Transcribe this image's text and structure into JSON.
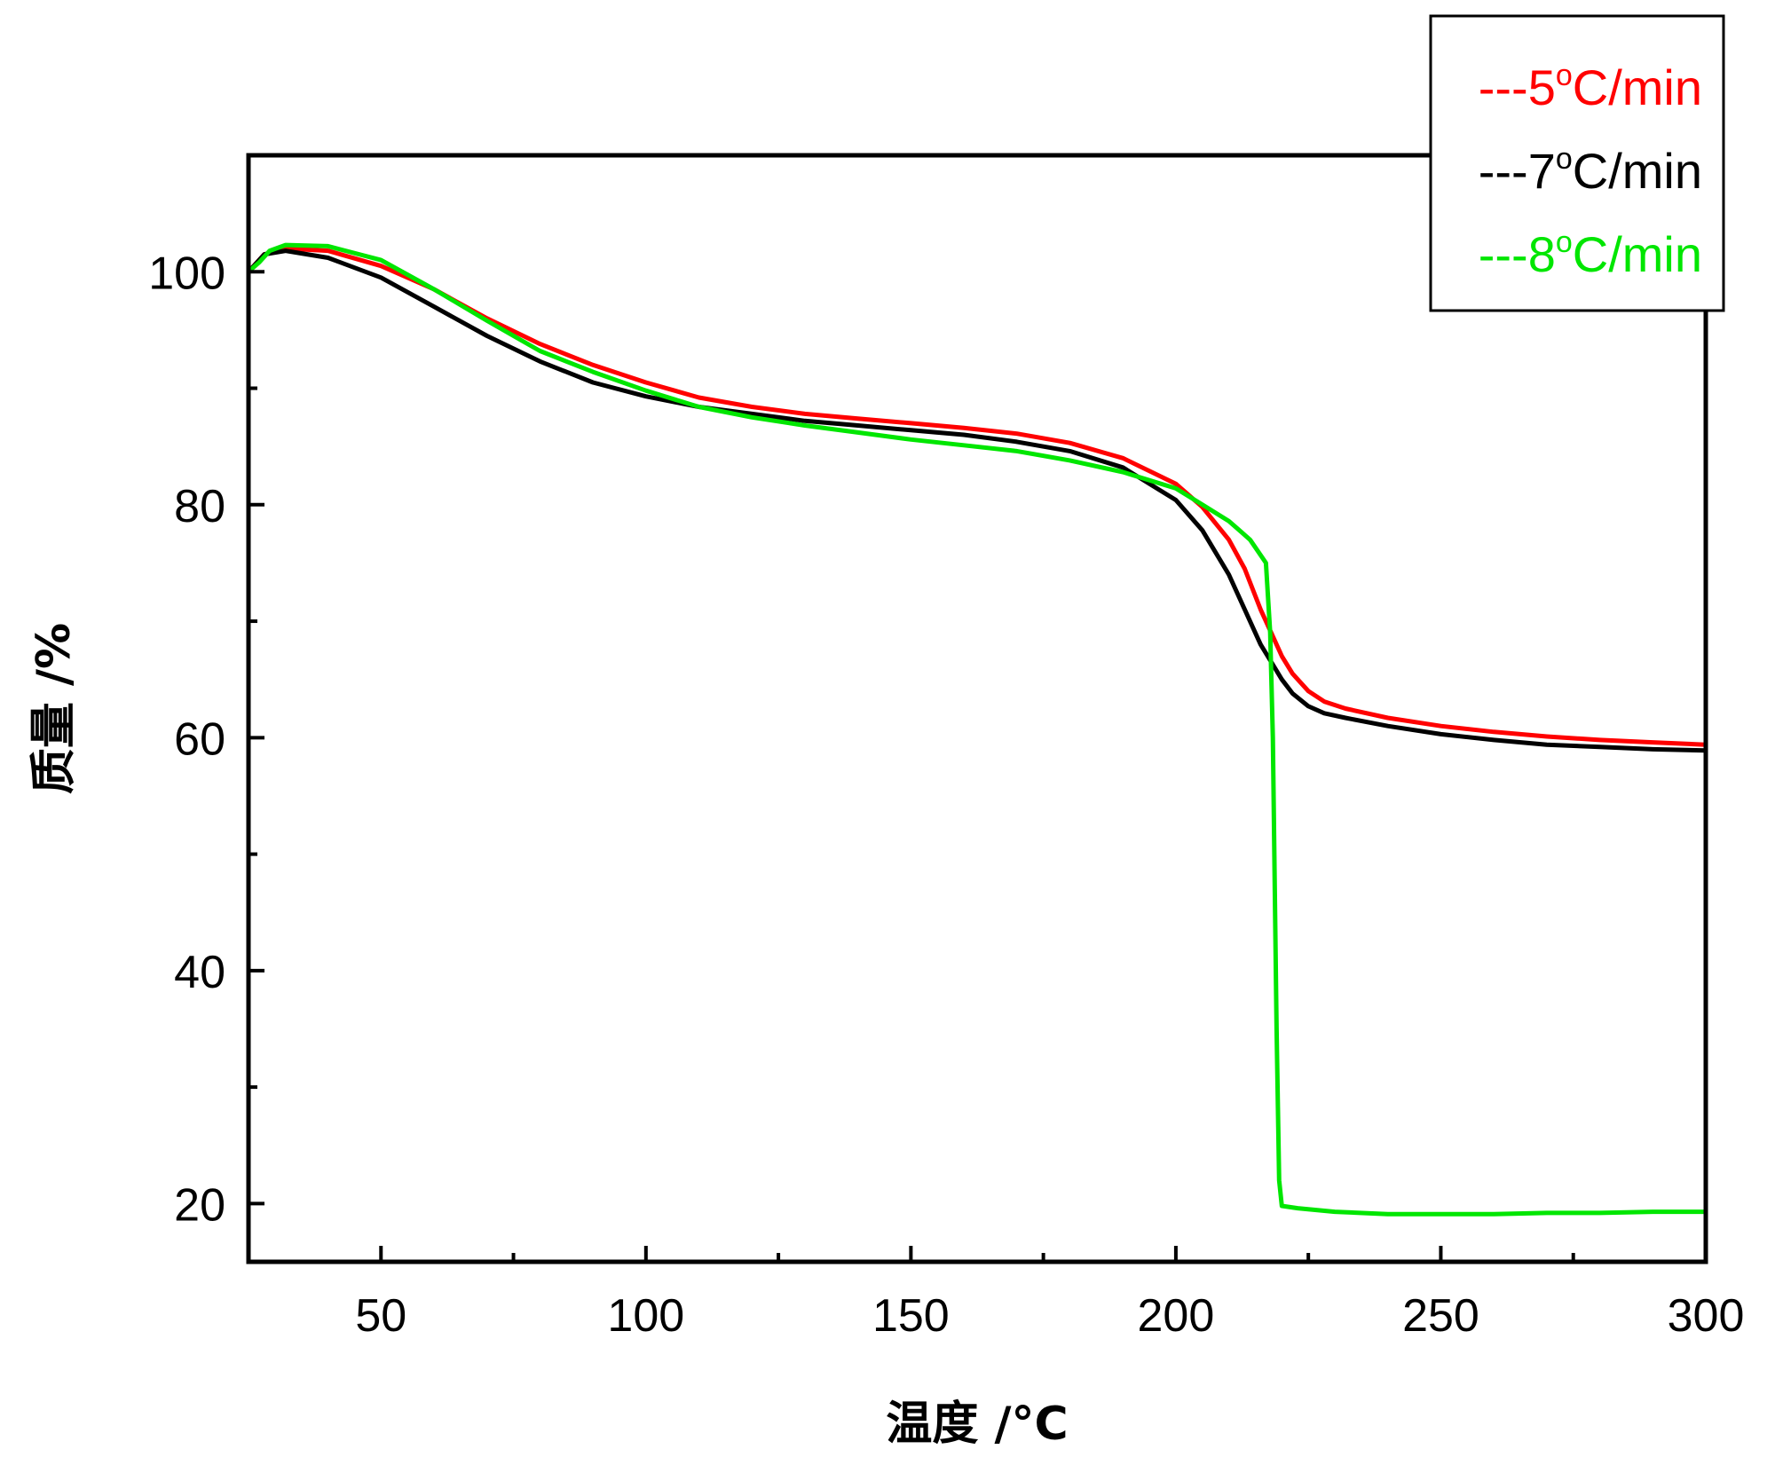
{
  "chart_data": {
    "type": "line",
    "title": "",
    "xlabel": "温度 /°C",
    "ylabel": "质量 /%",
    "xlim": [
      25,
      300
    ],
    "ylim": [
      15,
      110
    ],
    "xticks": [
      50,
      100,
      150,
      200,
      250,
      300
    ],
    "yticks": [
      20,
      40,
      60,
      80,
      100
    ],
    "grid": false,
    "legend_position": "top-right, outside above plot",
    "series": [
      {
        "name": "---5°C/min",
        "label_prefix": "---5",
        "label_suffix": "C/min",
        "color": "#ff0000",
        "x": [
          25,
          28,
          32,
          40,
          50,
          60,
          70,
          80,
          90,
          100,
          110,
          120,
          130,
          140,
          150,
          160,
          170,
          180,
          190,
          200,
          205,
          210,
          213,
          216,
          218,
          220,
          222,
          225,
          228,
          232,
          240,
          250,
          260,
          270,
          280,
          290,
          300
        ],
        "y": [
          100,
          101.5,
          102,
          101.8,
          100.5,
          98.5,
          96,
          93.8,
          92,
          90.5,
          89.2,
          88.4,
          87.8,
          87.4,
          87,
          86.6,
          86.1,
          85.3,
          84,
          81.8,
          79.8,
          77,
          74.5,
          71,
          69,
          67,
          65.5,
          64,
          63.1,
          62.5,
          61.7,
          61,
          60.5,
          60.1,
          59.8,
          59.6,
          59.4
        ]
      },
      {
        "name": "---7°C/min",
        "label_prefix": "---7",
        "label_suffix": "C/min",
        "color": "#000000",
        "x": [
          25,
          28,
          32,
          40,
          50,
          60,
          70,
          80,
          90,
          100,
          110,
          120,
          130,
          140,
          150,
          160,
          170,
          180,
          190,
          200,
          205,
          210,
          213,
          216,
          218,
          220,
          222,
          225,
          228,
          232,
          240,
          250,
          260,
          270,
          280,
          290,
          300
        ],
        "y": [
          100,
          101.5,
          101.8,
          101.2,
          99.5,
          97,
          94.5,
          92.3,
          90.5,
          89.3,
          88.4,
          87.8,
          87.2,
          86.8,
          86.4,
          86,
          85.4,
          84.6,
          83.2,
          80.4,
          77.8,
          74,
          71,
          68,
          66.5,
          65,
          63.8,
          62.7,
          62.1,
          61.7,
          61,
          60.3,
          59.8,
          59.4,
          59.2,
          59,
          58.9
        ]
      },
      {
        "name": "---8°C/min",
        "label_prefix": "---8",
        "label_suffix": "C/min",
        "color": "#00e600",
        "x": [
          25,
          27,
          29,
          32,
          40,
          50,
          60,
          70,
          80,
          90,
          100,
          110,
          120,
          130,
          140,
          150,
          160,
          170,
          180,
          190,
          200,
          205,
          210,
          214,
          217,
          217.8,
          218.3,
          219,
          219.5,
          220,
          223,
          230,
          240,
          250,
          260,
          270,
          280,
          290,
          300
        ],
        "y": [
          100,
          100.8,
          101.8,
          102.3,
          102.2,
          101,
          98.5,
          95.8,
          93.2,
          91.4,
          89.8,
          88.4,
          87.5,
          86.8,
          86.2,
          85.6,
          85.1,
          84.6,
          83.8,
          82.8,
          81.4,
          80,
          78.6,
          77,
          75,
          69,
          60,
          35,
          22,
          19.8,
          19.6,
          19.3,
          19.1,
          19.1,
          19.1,
          19.2,
          19.2,
          19.3,
          19.3
        ]
      }
    ]
  }
}
